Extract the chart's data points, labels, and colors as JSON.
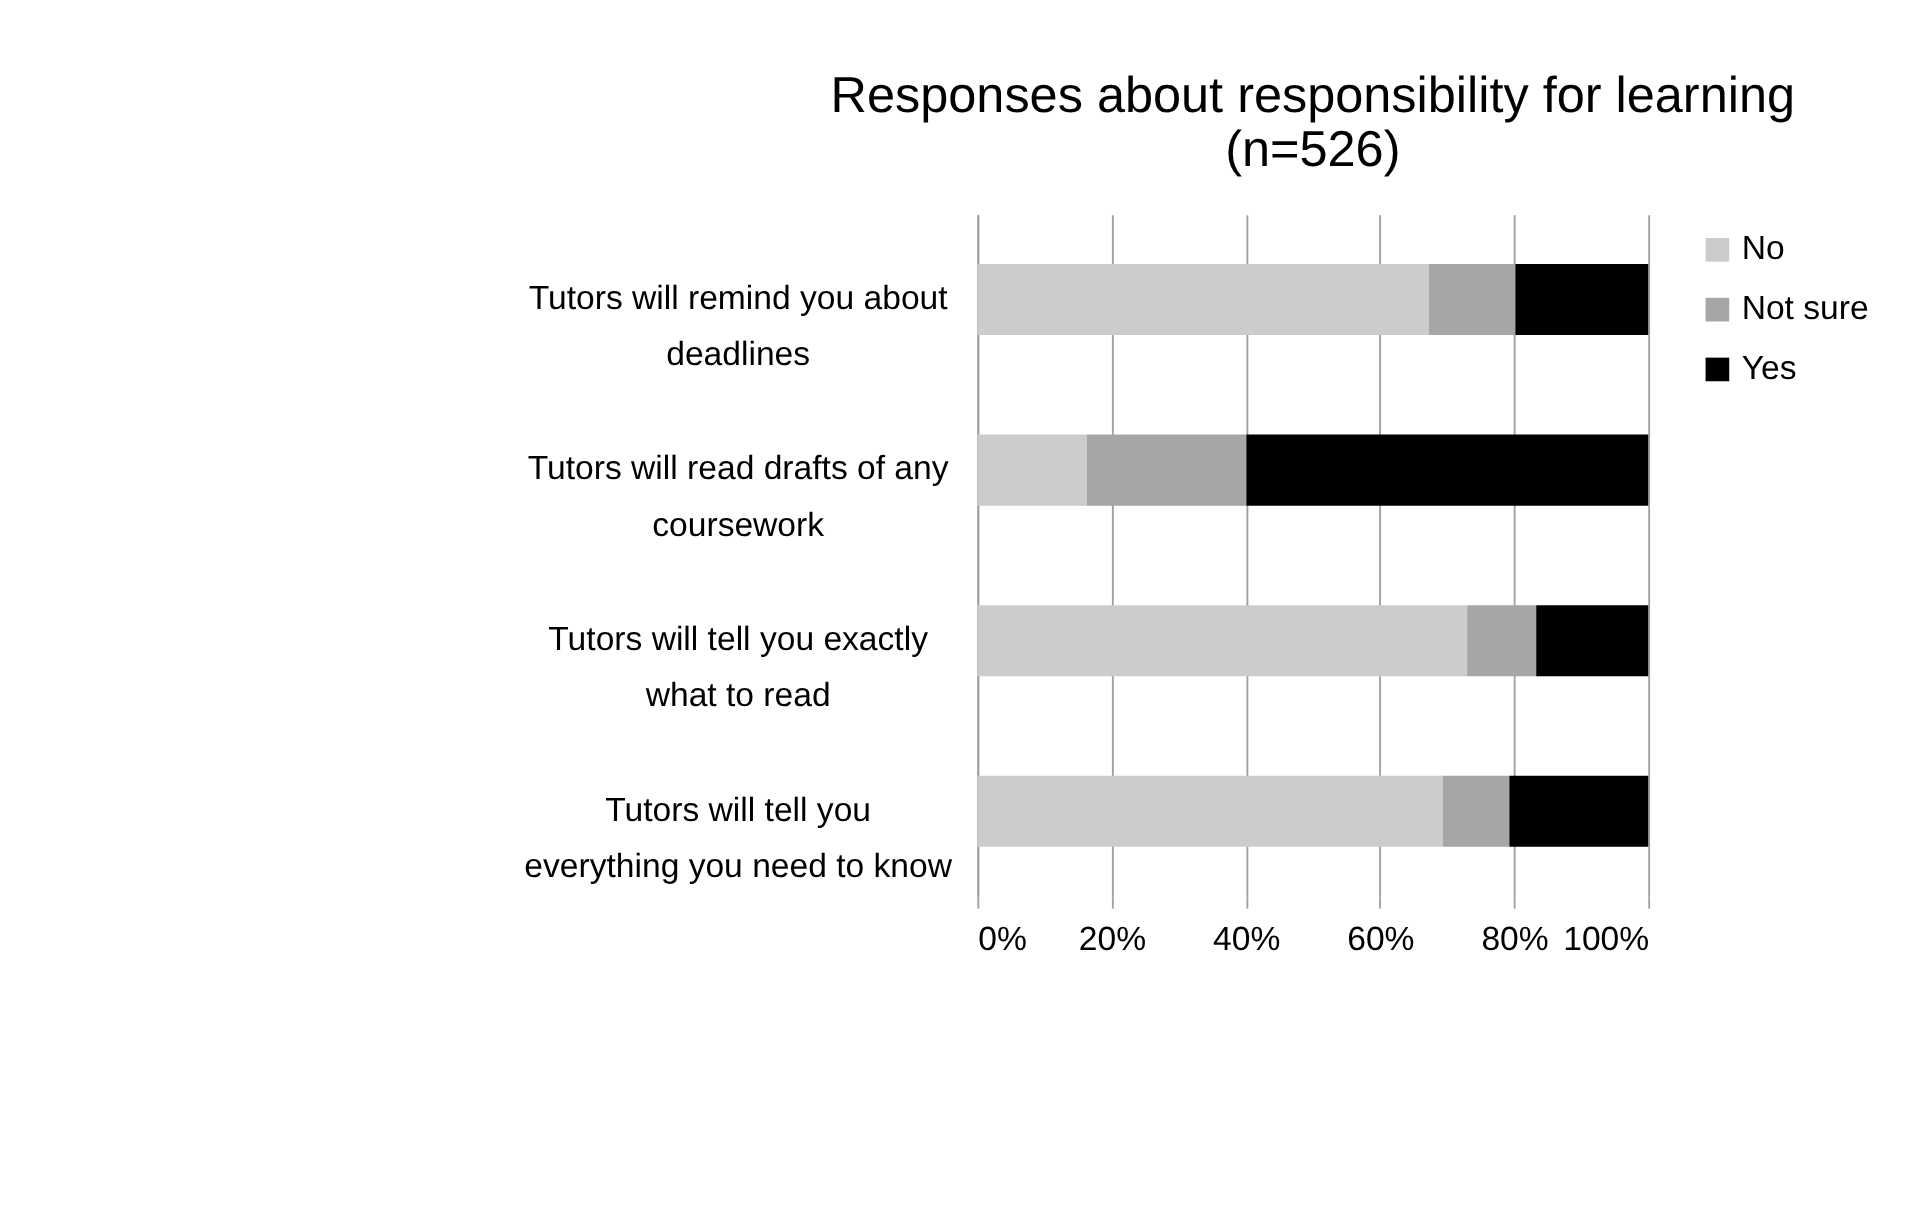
{
  "chart_data": {
    "type": "bar",
    "orientation": "horizontal",
    "stacked": true,
    "title": "Responses about responsibility for learning (n=526)",
    "categories": [
      "Tutors will remind you about deadlines",
      "Tutors will read drafts of any coursework",
      "Tutors will tell you exactly what to read",
      "Tutors will tell you everything you need to know"
    ],
    "series": [
      {
        "name": "No",
        "color": "#cccccc",
        "values": [
          67.3,
          16.3,
          73.0,
          69.4
        ]
      },
      {
        "name": "Not sure",
        "color": "#a6a6a6",
        "values": [
          12.9,
          23.8,
          10.3,
          9.9
        ]
      },
      {
        "name": "Yes",
        "color": "#000000",
        "values": [
          19.8,
          59.9,
          16.7,
          20.7
        ]
      }
    ],
    "xlim": [
      0,
      100
    ],
    "xticks": [
      {
        "value": 0,
        "label": "0%"
      },
      {
        "value": 20,
        "label": "20%"
      },
      {
        "value": 40,
        "label": "40%"
      },
      {
        "value": 60,
        "label": "60%"
      },
      {
        "value": 80,
        "label": "80%"
      },
      {
        "value": 100,
        "label": "100%"
      }
    ],
    "grid": "x",
    "legend": "right"
  }
}
